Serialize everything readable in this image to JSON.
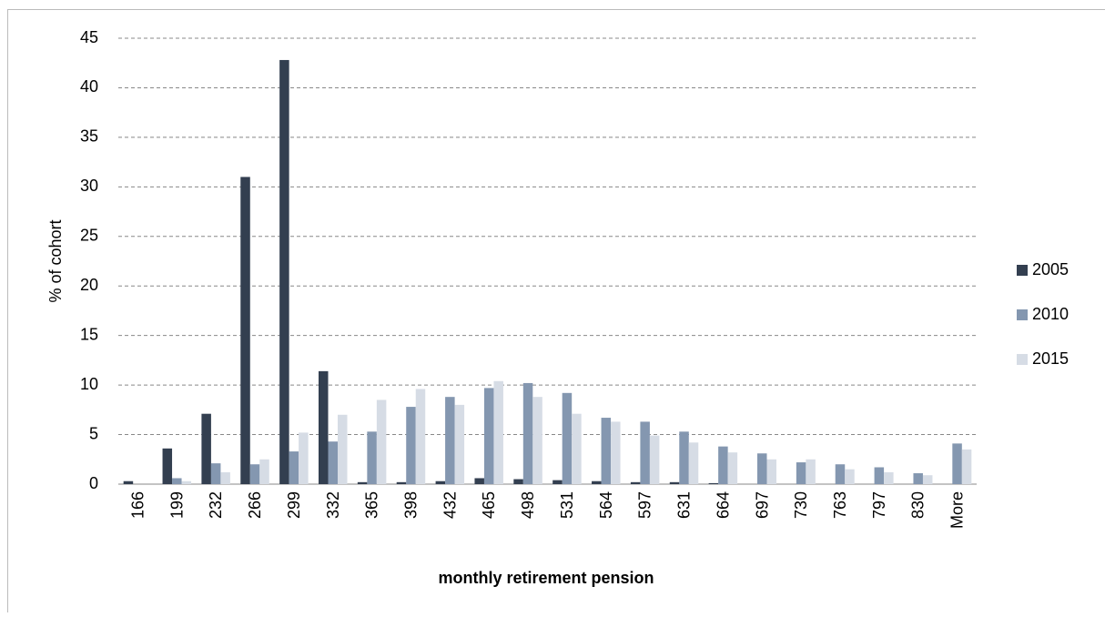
{
  "chart_data": {
    "type": "bar",
    "y_label": "% of cohort",
    "x_label": "monthly retirement pension",
    "categories": [
      "166",
      "199",
      "232",
      "266",
      "299",
      "332",
      "365",
      "398",
      "432",
      "465",
      "498",
      "531",
      "564",
      "597",
      "631",
      "664",
      "697",
      "730",
      "763",
      "797",
      "830",
      "More"
    ],
    "series": [
      {
        "name": "2005",
        "color": "#333f50",
        "values": [
          0.3,
          3.6,
          7.1,
          31.0,
          42.8,
          11.4,
          0.2,
          0.2,
          0.3,
          0.6,
          0.5,
          0.4,
          0.3,
          0.2,
          0.2,
          0.1,
          0,
          0,
          0,
          0,
          0,
          0
        ]
      },
      {
        "name": "2010",
        "color": "#8497b0",
        "values": [
          0,
          0.6,
          2.1,
          2.0,
          3.3,
          4.3,
          5.3,
          7.8,
          8.8,
          9.7,
          10.2,
          9.2,
          6.7,
          6.3,
          5.3,
          3.8,
          3.1,
          2.2,
          2.0,
          1.7,
          1.1,
          4.1
        ]
      },
      {
        "name": "2015",
        "color": "#d6dce5",
        "values": [
          0,
          0.3,
          1.2,
          2.5,
          5.2,
          7.0,
          8.5,
          9.6,
          8.0,
          10.4,
          8.8,
          7.1,
          6.3,
          4.9,
          4.2,
          3.2,
          2.5,
          2.5,
          1.5,
          1.2,
          0.9,
          3.5
        ]
      }
    ],
    "ylim": [
      0,
      45
    ],
    "yticks": [
      0,
      5,
      10,
      15,
      20,
      25,
      30,
      35,
      40,
      45
    ],
    "grid": true,
    "legend": "right"
  }
}
